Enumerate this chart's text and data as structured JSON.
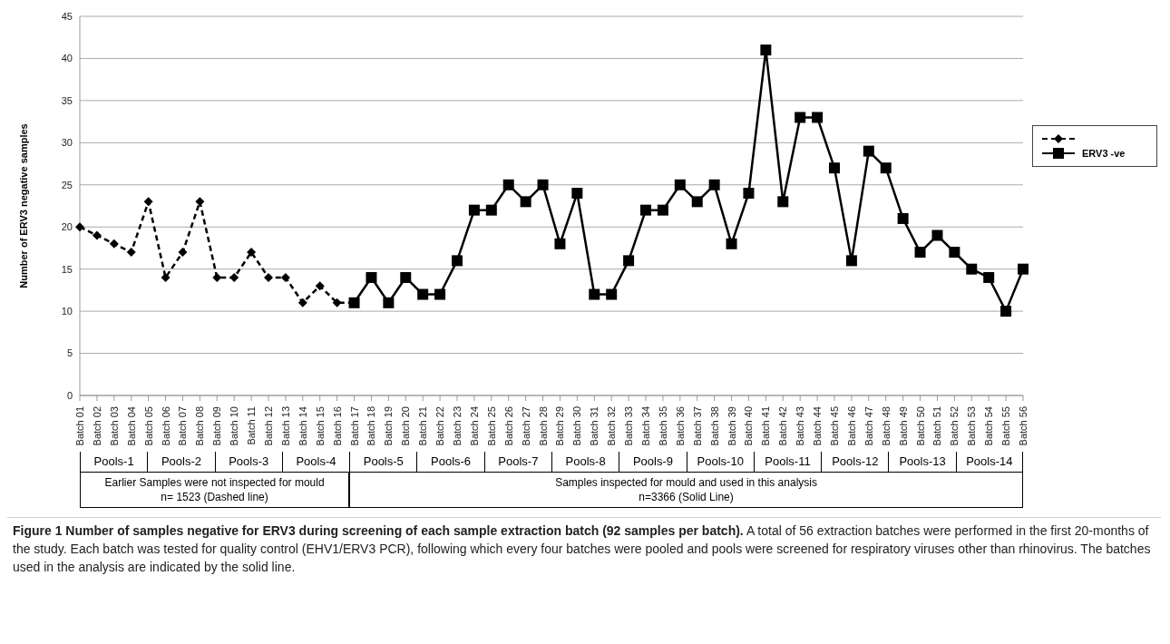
{
  "chart_data": {
    "type": "line",
    "ylabel": "Number of ERV3 negative samples",
    "categories": [
      "Batch 01",
      "Batch 02",
      "Batch 03",
      "Batch 04",
      "Batch 05",
      "Batch 06",
      "Batch 07",
      "Batch 08",
      "Batch 09",
      "Batch 10",
      "Batch 11",
      "Batch 12",
      "Batch 13",
      "Batch 14",
      "Batch 15",
      "Batch 16",
      "Batch 17",
      "Batch 18",
      "Batch 19",
      "Batch 20",
      "Batch 21",
      "Batch 22",
      "Batch 23",
      "Batch 24",
      "Batch 25",
      "Batch 26",
      "Batch 27",
      "Batch 28",
      "Batch 29",
      "Batch 30",
      "Batch 31",
      "Batch 32",
      "Batch 33",
      "Batch 34",
      "Batch 35",
      "Batch 36",
      "Batch 37",
      "Batch 38",
      "Batch 39",
      "Batch 40",
      "Batch 41",
      "Batch 42",
      "Batch 43",
      "Batch 44",
      "Batch 45",
      "Batch 46",
      "Batch 47",
      "Batch 48",
      "Batch 49",
      "Batch 50",
      "Batch 51",
      "Batch 52",
      "Batch 53",
      "Batch 54",
      "Batch 55",
      "Batch 56"
    ],
    "series": [
      {
        "color": "#000000",
        "marker": "diamond",
        "line_style": "dashed",
        "values": [
          20,
          19,
          18,
          17,
          23,
          14,
          17,
          23,
          14,
          14,
          17,
          14,
          14,
          11,
          13,
          11,
          11,
          null,
          null,
          null,
          null,
          null,
          null,
          null,
          null,
          null,
          null,
          null,
          null,
          null,
          null,
          null,
          null,
          null,
          null,
          null,
          null,
          null,
          null,
          null,
          null,
          null,
          null,
          null,
          null,
          null,
          null,
          null,
          null,
          null,
          null,
          null,
          null,
          null,
          null,
          null
        ]
      },
      {
        "name": "ERV3 -ve",
        "color": "#000000",
        "marker": "square",
        "line_style": "solid",
        "values": [
          null,
          null,
          null,
          null,
          null,
          null,
          null,
          null,
          null,
          null,
          null,
          null,
          null,
          null,
          null,
          null,
          11,
          14,
          11,
          14,
          12,
          12,
          16,
          22,
          22,
          25,
          23,
          25,
          18,
          24,
          12,
          12,
          16,
          22,
          22,
          25,
          23,
          25,
          18,
          24,
          41,
          23,
          33,
          33,
          27,
          16,
          29,
          27,
          21,
          17,
          19,
          17,
          15,
          14,
          10,
          15
        ]
      }
    ],
    "ylim": [
      0,
      45
    ],
    "yticks": [
      0,
      5,
      10,
      15,
      20,
      25,
      30,
      35,
      40,
      45
    ],
    "grid": "y",
    "legend": "right",
    "annotations": [
      "Pools-1",
      "Pools-2",
      "Pools-3",
      "Pools-4",
      "Pools-5",
      "Pools-6",
      "Pools-7",
      "Pools-8",
      "Pools-9",
      "Pools-10",
      "Pools-11",
      "Pools-12",
      "Pools-13",
      "Pools-14",
      "Earlier Samples were not inspected for mould\nn= 1523 (Dashed line)",
      "Samples inspected for mould and used in this analysis\nn=3366 (Solid Line)",
      "Figure 1 Number of samples negative for ERV3 during screening of each sample extraction batch (92 samples per batch).",
      "A total of 56 extraction batches were performed in the first 20-months of the study. Each batch was tested for quality control (EHV1/ERV3 PCR), following which every four batches were pooled and pools were screened for respiratory viruses other than rhinovirus. The batches used in the analysis are indicated by the solid line."
    ]
  }
}
